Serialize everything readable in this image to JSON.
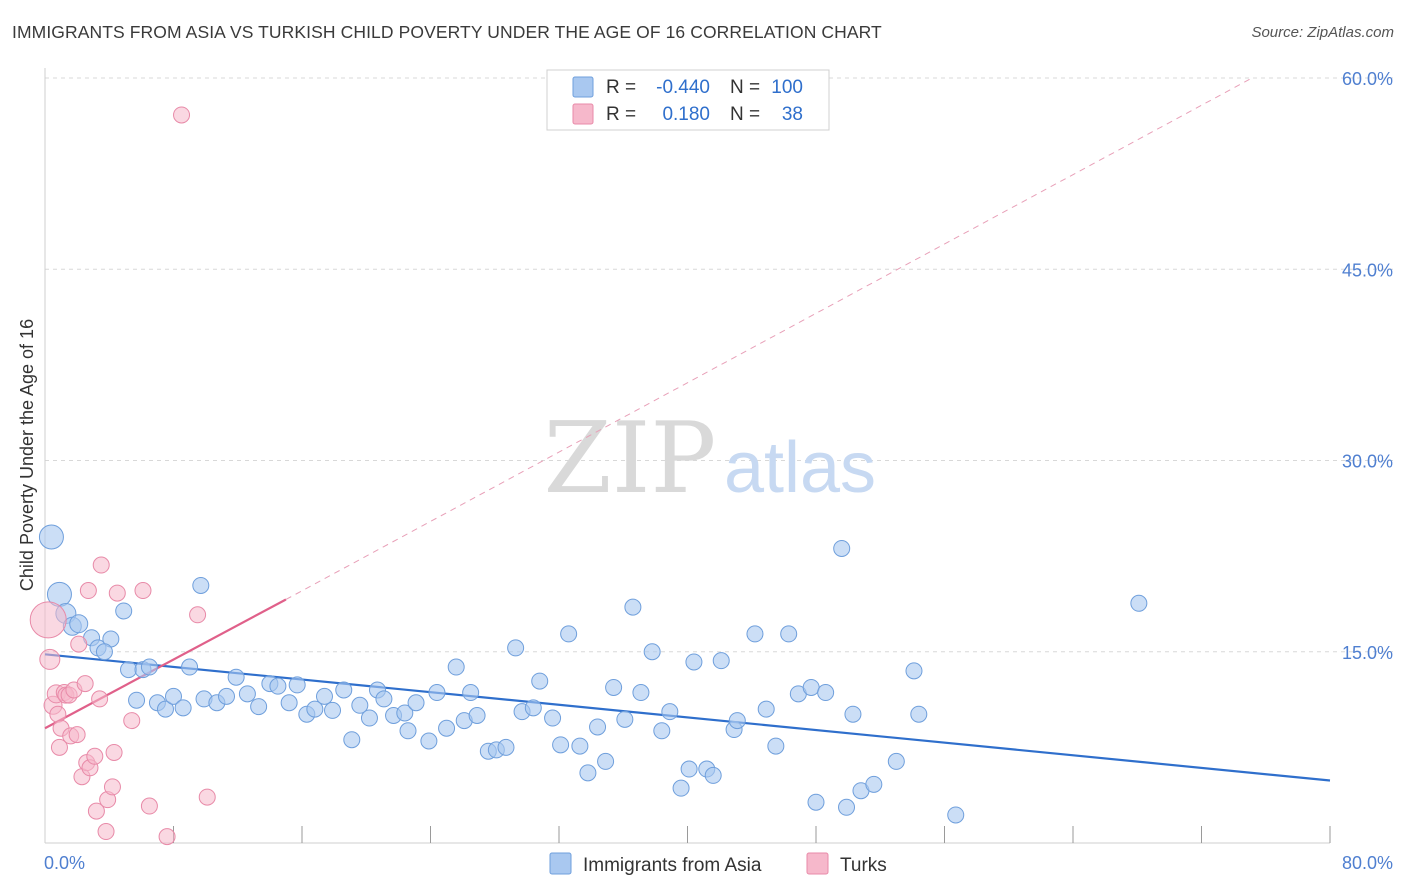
{
  "title": "IMMIGRANTS FROM ASIA VS TURKISH CHILD POVERTY UNDER THE AGE OF 16 CORRELATION CHART",
  "source": "Source: ZipAtlas.com",
  "watermark": {
    "zip": "ZIP",
    "atlas": "atlas"
  },
  "legend_top": {
    "rows": [
      {
        "r_label": "R =",
        "r_value": "-0.440",
        "n_label": "N =",
        "n_value": "100"
      },
      {
        "r_label": "R =",
        "r_value": "0.180",
        "n_label": "N =",
        "n_value": "38"
      }
    ]
  },
  "colors": {
    "asia_fill": "#a9c8f0",
    "asia_stroke": "#6f9fdc",
    "asia_line": "#2f6fcc",
    "turks_fill": "#f6b8cb",
    "turks_stroke": "#e88aa8",
    "turks_line": "#e0608a",
    "grid": "#d8d8d8",
    "tick_text": "#4f7fd0"
  },
  "chart_data": {
    "type": "scatter",
    "xlabel": "",
    "ylabel": "Child Poverty Under the Age of 16",
    "xlim": [
      0,
      80
    ],
    "ylim": [
      0,
      60
    ],
    "x_tick_labels": [
      "0.0%",
      "80.0%"
    ],
    "y_ticks": [
      15,
      30,
      45,
      60
    ],
    "y_tick_labels": [
      "15.0%",
      "30.0%",
      "45.0%",
      "60.0%"
    ],
    "grid": true,
    "legend_position": "bottom-center",
    "series": [
      {
        "name": "Immigrants from Asia",
        "r": -0.44,
        "n": 100,
        "trend": {
          "x0": 0,
          "y0": 14.8,
          "x1": 80,
          "y1": 4.9
        },
        "points": [
          [
            0.4,
            24.0,
            12
          ],
          [
            0.9,
            19.5,
            12
          ],
          [
            1.3,
            18.0,
            10
          ],
          [
            1.7,
            17.0,
            9
          ],
          [
            2.1,
            17.2,
            9
          ],
          [
            2.9,
            16.1,
            8
          ],
          [
            3.3,
            15.3,
            8
          ],
          [
            4.1,
            16.0,
            8
          ],
          [
            3.7,
            15.0,
            8
          ],
          [
            4.9,
            18.2,
            8
          ],
          [
            5.2,
            13.6,
            8
          ],
          [
            5.7,
            11.2,
            8
          ],
          [
            6.1,
            13.6,
            8
          ],
          [
            6.5,
            13.8,
            8
          ],
          [
            7.0,
            11.0,
            8
          ],
          [
            7.5,
            10.5,
            8
          ],
          [
            8.0,
            11.5,
            8
          ],
          [
            8.6,
            10.6,
            8
          ],
          [
            9.0,
            13.8,
            8
          ],
          [
            9.7,
            20.2,
            8
          ],
          [
            9.9,
            11.3,
            8
          ],
          [
            10.7,
            11.0,
            8
          ],
          [
            11.3,
            11.5,
            8
          ],
          [
            11.9,
            13.0,
            8
          ],
          [
            12.6,
            11.7,
            8
          ],
          [
            13.3,
            10.7,
            8
          ],
          [
            14.0,
            12.5,
            8
          ],
          [
            14.5,
            12.3,
            8
          ],
          [
            15.2,
            11.0,
            8
          ],
          [
            15.7,
            12.4,
            8
          ],
          [
            16.3,
            10.1,
            8
          ],
          [
            16.8,
            10.5,
            8
          ],
          [
            17.4,
            11.5,
            8
          ],
          [
            17.9,
            10.4,
            8
          ],
          [
            18.6,
            12.0,
            8
          ],
          [
            19.1,
            8.1,
            8
          ],
          [
            19.6,
            10.8,
            8
          ],
          [
            20.2,
            9.8,
            8
          ],
          [
            20.7,
            12.0,
            8
          ],
          [
            21.1,
            11.3,
            8
          ],
          [
            21.7,
            10.0,
            8
          ],
          [
            22.4,
            10.2,
            8
          ],
          [
            22.6,
            8.8,
            8
          ],
          [
            23.1,
            11.0,
            8
          ],
          [
            23.9,
            8.0,
            8
          ],
          [
            24.4,
            11.8,
            8
          ],
          [
            25.0,
            9.0,
            8
          ],
          [
            25.6,
            13.8,
            8
          ],
          [
            26.1,
            9.6,
            8
          ],
          [
            26.5,
            11.8,
            8
          ],
          [
            26.9,
            10.0,
            8
          ],
          [
            27.6,
            7.2,
            8
          ],
          [
            28.1,
            7.3,
            8
          ],
          [
            28.7,
            7.5,
            8
          ],
          [
            29.3,
            15.3,
            8
          ],
          [
            29.7,
            10.3,
            8
          ],
          [
            30.4,
            10.6,
            8
          ],
          [
            30.8,
            12.7,
            8
          ],
          [
            31.6,
            9.8,
            8
          ],
          [
            32.1,
            7.7,
            8
          ],
          [
            32.6,
            16.4,
            8
          ],
          [
            33.3,
            7.6,
            8
          ],
          [
            33.8,
            5.5,
            8
          ],
          [
            34.4,
            9.1,
            8
          ],
          [
            34.9,
            6.4,
            8
          ],
          [
            35.4,
            12.2,
            8
          ],
          [
            36.1,
            9.7,
            8
          ],
          [
            36.6,
            18.5,
            8
          ],
          [
            37.1,
            11.8,
            8
          ],
          [
            37.8,
            15.0,
            8
          ],
          [
            38.4,
            8.8,
            8
          ],
          [
            38.9,
            10.3,
            8
          ],
          [
            39.6,
            4.3,
            8
          ],
          [
            40.1,
            5.8,
            8
          ],
          [
            40.4,
            14.2,
            8
          ],
          [
            41.2,
            5.8,
            8
          ],
          [
            41.6,
            5.3,
            8
          ],
          [
            42.1,
            14.3,
            8
          ],
          [
            42.9,
            8.9,
            8
          ],
          [
            43.1,
            9.6,
            8
          ],
          [
            44.2,
            16.4,
            8
          ],
          [
            44.9,
            10.5,
            8
          ],
          [
            45.5,
            7.6,
            8
          ],
          [
            46.3,
            16.4,
            8
          ],
          [
            46.9,
            11.7,
            8
          ],
          [
            47.7,
            12.2,
            8
          ],
          [
            48.0,
            3.2,
            8
          ],
          [
            48.6,
            11.8,
            8
          ],
          [
            49.6,
            23.1,
            8
          ],
          [
            49.9,
            2.8,
            8
          ],
          [
            50.3,
            10.1,
            8
          ],
          [
            50.8,
            4.1,
            8
          ],
          [
            51.6,
            4.6,
            8
          ],
          [
            53.0,
            6.4,
            8
          ],
          [
            54.1,
            13.5,
            8
          ],
          [
            54.4,
            10.1,
            8
          ],
          [
            56.7,
            2.2,
            8
          ],
          [
            68.1,
            18.8,
            8
          ]
        ]
      },
      {
        "name": "Turks",
        "r": 0.18,
        "n": 38,
        "trend": {
          "x0": 0,
          "y0": 9.0,
          "x1": 15,
          "y1": 19.1
        },
        "trend_extended": {
          "x0": 15,
          "y0": 19.1,
          "x1": 75,
          "y1": 59.9
        },
        "points": [
          [
            0.2,
            17.5,
            18
          ],
          [
            0.3,
            14.4,
            10
          ],
          [
            0.5,
            10.8,
            9
          ],
          [
            0.7,
            11.7,
            9
          ],
          [
            0.8,
            10.1,
            8
          ],
          [
            0.9,
            7.5,
            8
          ],
          [
            1.0,
            9.0,
            8
          ],
          [
            1.2,
            11.8,
            8
          ],
          [
            1.3,
            11.6,
            8
          ],
          [
            1.5,
            11.6,
            8
          ],
          [
            1.6,
            8.4,
            8
          ],
          [
            1.8,
            12.0,
            8
          ],
          [
            2.0,
            8.5,
            8
          ],
          [
            2.1,
            15.6,
            8
          ],
          [
            2.3,
            5.2,
            8
          ],
          [
            2.5,
            12.5,
            8
          ],
          [
            2.6,
            6.3,
            8
          ],
          [
            2.7,
            19.8,
            8
          ],
          [
            2.8,
            5.9,
            8
          ],
          [
            3.1,
            6.8,
            8
          ],
          [
            3.2,
            2.5,
            8
          ],
          [
            3.4,
            11.3,
            8
          ],
          [
            3.5,
            21.8,
            8
          ],
          [
            3.8,
            0.9,
            8
          ],
          [
            3.9,
            3.4,
            8
          ],
          [
            4.2,
            4.4,
            8
          ],
          [
            4.3,
            7.1,
            8
          ],
          [
            4.5,
            19.6,
            8
          ],
          [
            5.4,
            9.6,
            8
          ],
          [
            6.1,
            19.8,
            8
          ],
          [
            6.5,
            2.9,
            8
          ],
          [
            7.6,
            0.5,
            8
          ],
          [
            8.5,
            57.1,
            8
          ],
          [
            9.5,
            17.9,
            8
          ],
          [
            10.1,
            3.6,
            8
          ]
        ]
      }
    ]
  },
  "legend_bottom": [
    {
      "label": "Immigrants from Asia"
    },
    {
      "label": "Turks"
    }
  ]
}
